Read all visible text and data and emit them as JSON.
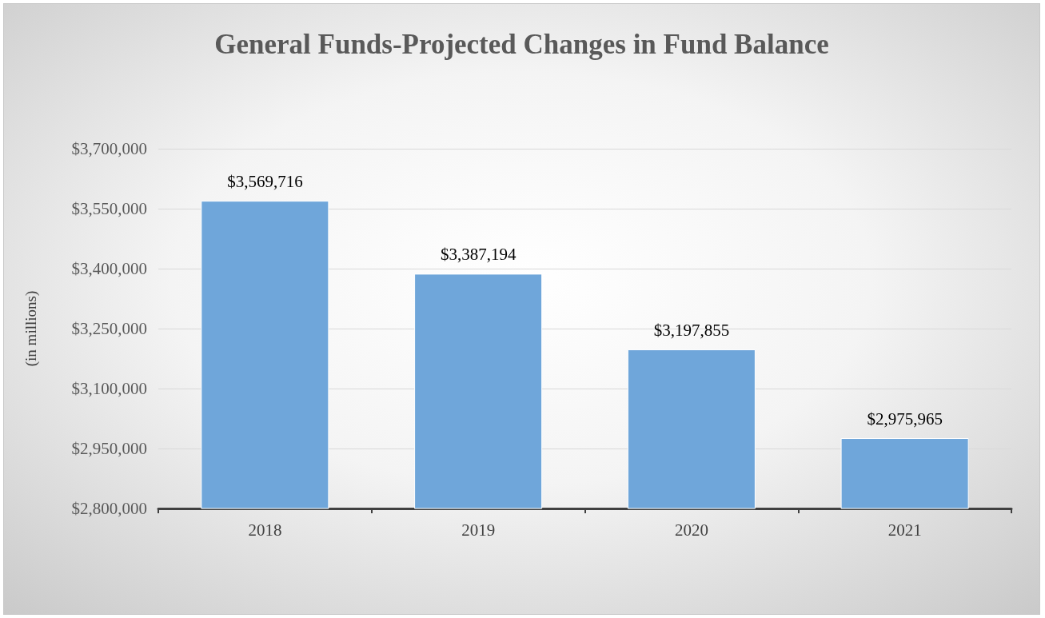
{
  "chart_data": {
    "type": "bar",
    "title": "General Funds-Projected Changes in Fund Balance",
    "ylabel": "(in millions)",
    "categories": [
      "2018",
      "2019",
      "2020",
      "2021"
    ],
    "values": [
      3569716,
      3387194,
      3197855,
      2975965
    ],
    "value_labels": [
      "$3,569,716",
      "$3,387,194",
      "$3,197,855",
      "$2,975,965"
    ],
    "color": "#6fa6da",
    "ylim": [
      2800000,
      3700000
    ],
    "yticks": [
      {
        "value": 2800000,
        "label": "$2,800,000"
      },
      {
        "value": 2950000,
        "label": "$2,950,000"
      },
      {
        "value": 3100000,
        "label": "$3,100,000"
      },
      {
        "value": 3250000,
        "label": "$3,250,000"
      },
      {
        "value": 3400000,
        "label": "$3,400,000"
      },
      {
        "value": 3550000,
        "label": "$3,550,000"
      },
      {
        "value": 3700000,
        "label": "$3,700,000"
      }
    ],
    "grid": "y"
  }
}
